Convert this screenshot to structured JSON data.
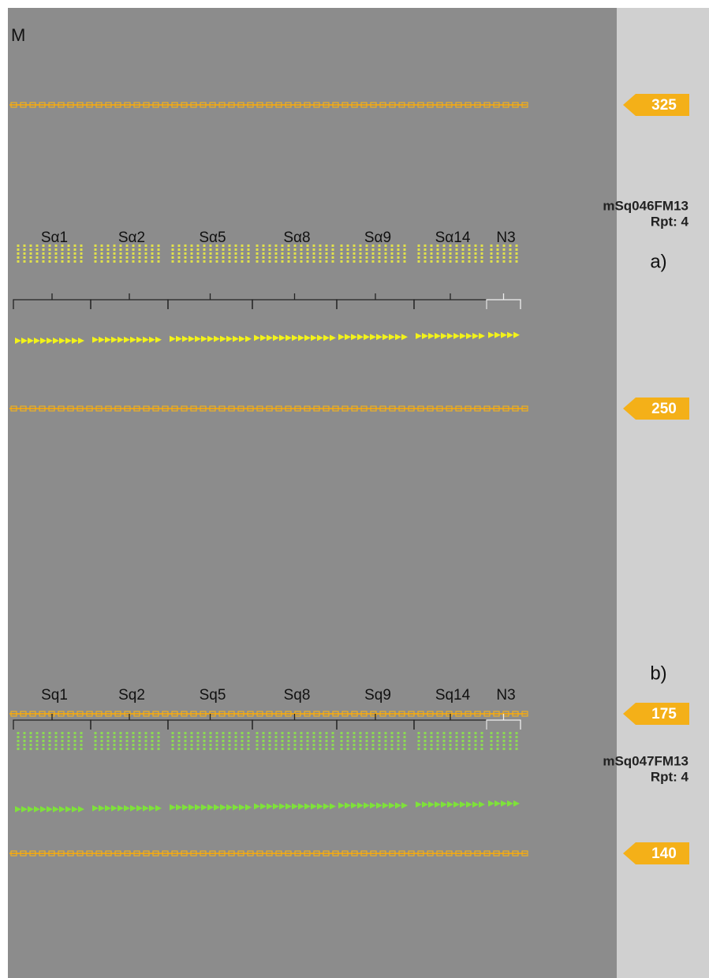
{
  "gel_label": "M",
  "markers": [
    "325",
    "250",
    "175",
    "140"
  ],
  "panels": [
    {
      "label": "a)",
      "locus": "mSq046FM13",
      "repeat": "Rpt: 4",
      "groups": [
        "Sα1",
        "Sα2",
        "Sα5",
        "Sα8",
        "Sα9",
        "Sα14",
        "N3"
      ]
    },
    {
      "label": "b)",
      "locus": "mSq047FM13",
      "repeat": "Rpt: 4",
      "groups": [
        "Sq1",
        "Sq2",
        "Sq5",
        "Sq8",
        "Sq9",
        "Sq14",
        "N3"
      ]
    }
  ]
}
